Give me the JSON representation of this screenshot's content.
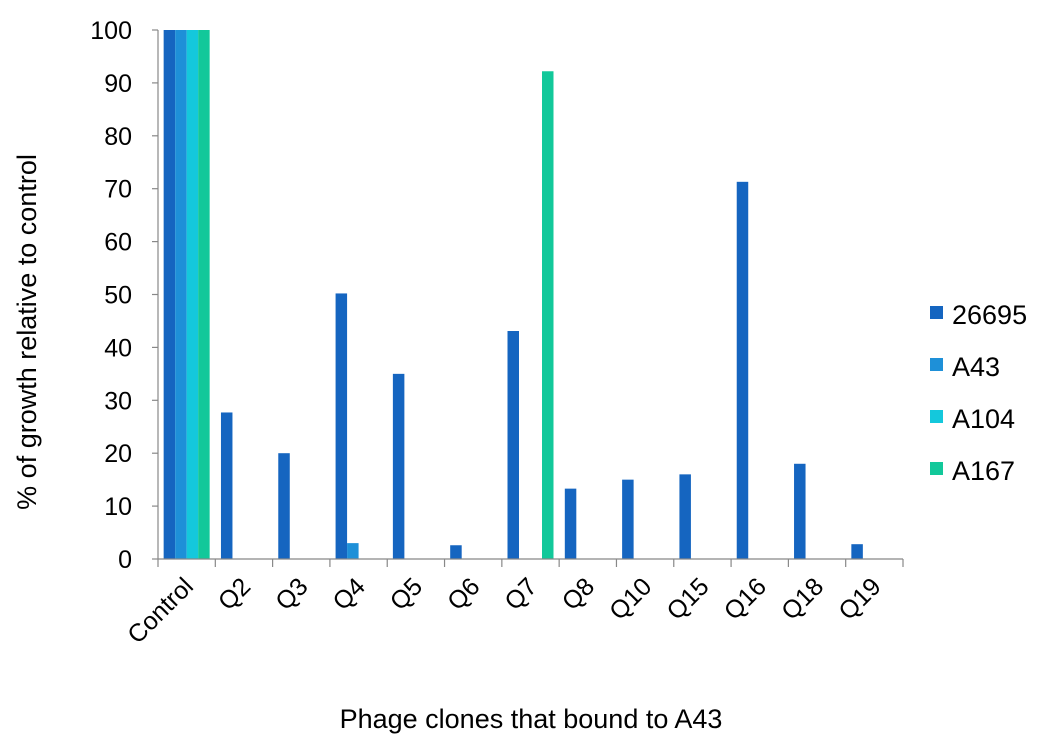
{
  "chart_data": {
    "type": "bar",
    "title": "",
    "xlabel": "Phage clones that bound to A43",
    "ylabel": "% of growth relative to control",
    "ylim": [
      0,
      100
    ],
    "yticks": [
      0,
      10,
      20,
      30,
      40,
      50,
      60,
      70,
      80,
      90,
      100
    ],
    "grid": false,
    "legend_position": "right",
    "categories": [
      "Control",
      "Q2",
      "Q3",
      "Q4",
      "Q5",
      "Q6",
      "Q7",
      "Q8",
      "Q10",
      "Q15",
      "Q16",
      "Q18",
      "Q19"
    ],
    "series": [
      {
        "name": "26695",
        "color": "#1565c0",
        "values": [
          100,
          27.7,
          20,
          50.2,
          35,
          2.6,
          43.1,
          13.3,
          15,
          16,
          71.3,
          18,
          2.8
        ]
      },
      {
        "name": "A43",
        "color": "#1e90d8",
        "values": [
          100,
          0,
          0,
          3,
          0,
          0,
          0,
          0,
          0,
          0,
          0,
          0,
          0
        ]
      },
      {
        "name": "A104",
        "color": "#14c8dc",
        "values": [
          100,
          0,
          0,
          0,
          0,
          0,
          0,
          0,
          0,
          0,
          0,
          0,
          0
        ]
      },
      {
        "name": "A167",
        "color": "#12c89a",
        "values": [
          100,
          0,
          0,
          0,
          0,
          0,
          92.2,
          0,
          0,
          0,
          0,
          0,
          0
        ]
      }
    ]
  }
}
